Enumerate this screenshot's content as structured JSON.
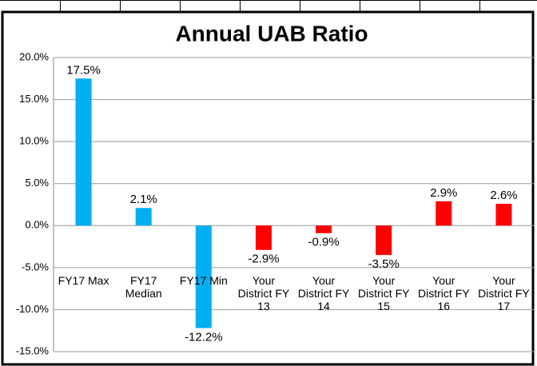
{
  "chart_data": {
    "type": "bar",
    "title": "Annual UAB Ratio",
    "categories": [
      "FY17 Max",
      "FY17 Median",
      "FY17 Min",
      "Your District FY 13",
      "Your District FY 14",
      "Your District FY 15",
      "Your District FY 16",
      "Your District FY 17"
    ],
    "values": [
      17.5,
      2.1,
      -12.2,
      -2.9,
      -0.9,
      -3.5,
      2.9,
      2.6
    ],
    "value_labels": [
      "17.5%",
      "2.1%",
      "-12.2%",
      "-2.9%",
      "-0.9%",
      "-3.5%",
      "2.9%",
      "2.6%"
    ],
    "colors": [
      "#00b0f0",
      "#00b0f0",
      "#00b0f0",
      "#ff0000",
      "#ff0000",
      "#ff0000",
      "#ff0000",
      "#ff0000"
    ],
    "ylim": [
      -15,
      20
    ],
    "yticks": [
      {
        "value": -15,
        "label": "-15.0%"
      },
      {
        "value": -10,
        "label": "-10.0%"
      },
      {
        "value": -5,
        "label": "-5.0%"
      },
      {
        "value": 0,
        "label": "0.0%"
      },
      {
        "value": 5,
        "label": "5.0%"
      },
      {
        "value": 10,
        "label": "10.0%"
      },
      {
        "value": 15,
        "label": "15.0%"
      },
      {
        "value": 20,
        "label": "20.0%"
      }
    ],
    "grid": true
  }
}
